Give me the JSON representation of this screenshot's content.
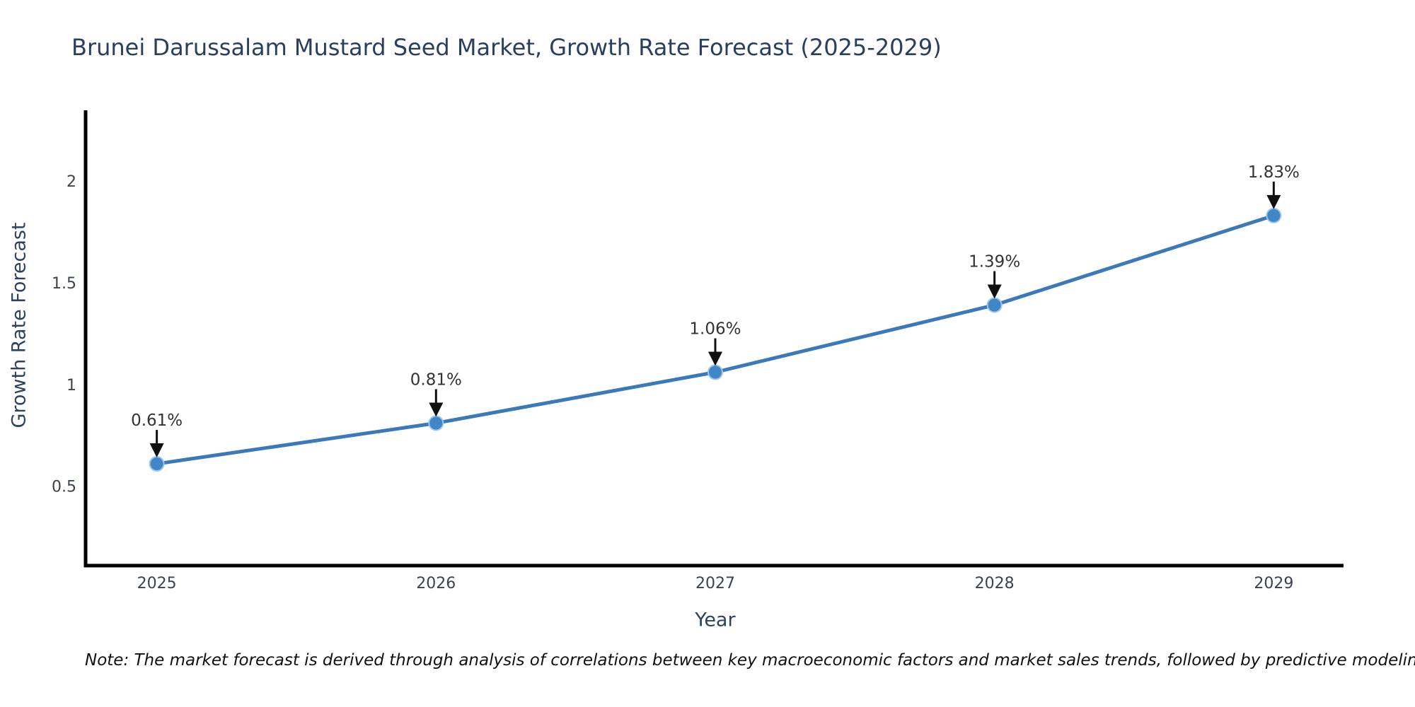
{
  "chart_data": {
    "type": "line",
    "title": "Brunei Darussalam Mustard Seed Market, Growth Rate Forecast (2025-2029)",
    "xlabel": "Year",
    "ylabel": "Growth Rate Forecast",
    "x": [
      2025,
      2026,
      2027,
      2028,
      2029
    ],
    "series": [
      {
        "name": "Growth Rate Forecast",
        "values": [
          0.61,
          0.81,
          1.06,
          1.39,
          1.83
        ],
        "labels": [
          "0.61%",
          "0.81%",
          "1.06%",
          "1.39%",
          "1.83%"
        ]
      }
    ],
    "yticks": [
      0.5,
      1,
      1.5,
      2
    ],
    "xlim": [
      2024.74,
      2029.25
    ],
    "ylim": [
      0.11,
      2.34
    ],
    "grid": false,
    "legend": "none",
    "annotations_have_arrows": true,
    "colors": {
      "line": "#3c79b8",
      "marker": "#4186c6",
      "marker_edge": "#9fc5e8",
      "arrow": "#111111",
      "annotation_text": "#333333",
      "axis_line": "#000000",
      "tick_text": "#3d434e",
      "title_text": "#2a3f5f"
    }
  },
  "figure": {
    "note": "Note: The market forecast is derived through analysis of correlations between key macroeconomic factors and market sales trends, followed by predictive modeling to project future sales."
  }
}
